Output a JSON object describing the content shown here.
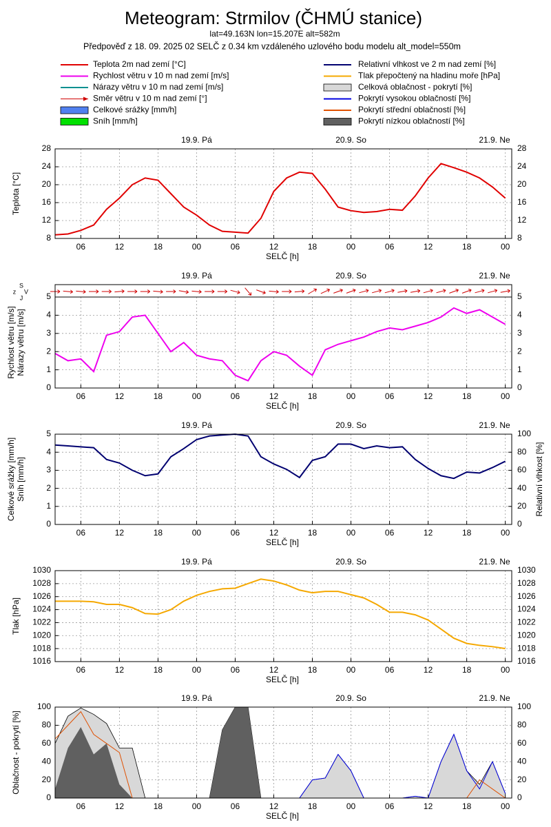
{
  "header": {
    "title": "Meteogram: Strmilov (ČHMÚ stanice)",
    "location": "lat=49.163N lon=15.207E alt=582m",
    "forecast": "Předpověď z 18. 09. 2025 02 SELČ z 0.34 km vzdáleného uzlového bodu modelu alt_model=550m"
  },
  "legend": [
    {
      "name": "Teplota 2m nad zemí [°C]",
      "color": "#e00000",
      "symbol": "line"
    },
    {
      "name": "Rychlost větru v 10 m nad zemí [m/s]",
      "color": "#ee00ee",
      "symbol": "line"
    },
    {
      "name": "Nárazy větru v 10 m nad zemí [m/s]",
      "color": "#009090",
      "symbol": "line"
    },
    {
      "name": "Směr větru v 10 m nad zemí [°]",
      "color": "#d00000",
      "symbol": "arrow"
    },
    {
      "name": "Celkové srážky [mm/h]",
      "color": "#5080f0",
      "symbol": "box"
    },
    {
      "name": "Sníh [mm/h]",
      "color": "#00e000",
      "symbol": "box"
    },
    {
      "name": "Relativní vlhkost ve 2 m nad zemí [%]",
      "color": "#000070",
      "symbol": "line"
    },
    {
      "name": "Tlak přepočtený na hladinu moře [hPa]",
      "color": "#f5a800",
      "symbol": "line"
    },
    {
      "name": "Celková oblačnost - pokrytí [%]",
      "color": "#d8d8d8",
      "symbol": "box"
    },
    {
      "name": "Pokrytí vysokou oblačností [%]",
      "color": "#0000e0",
      "symbol": "line"
    },
    {
      "name": "Pokrytí střední oblačností [%]",
      "color": "#e05000",
      "symbol": "line"
    },
    {
      "name": "Pokrytí nízkou oblačností [%]",
      "color": "#606060",
      "symbol": "box"
    }
  ],
  "chart_data": [
    {
      "type": "line",
      "xlabel": "SELČ [h]",
      "ylabel": [
        "Teplota [°C]"
      ],
      "xlim": [
        2,
        73
      ],
      "xticks": [
        {
          "value": 6,
          "label": "06"
        },
        {
          "value": 12,
          "label": "12"
        },
        {
          "value": 18,
          "label": "18"
        },
        {
          "value": 24,
          "label": "00"
        },
        {
          "value": 30,
          "label": "06"
        },
        {
          "value": 36,
          "label": "12"
        },
        {
          "value": 42,
          "label": "18"
        },
        {
          "value": 48,
          "label": "00"
        },
        {
          "value": 54,
          "label": "06"
        },
        {
          "value": 60,
          "label": "12"
        },
        {
          "value": 66,
          "label": "18"
        },
        {
          "value": 72,
          "label": "00"
        }
      ],
      "days": [
        {
          "value": 24,
          "label": "19.9. Pá"
        },
        {
          "value": 48,
          "label": "20.9. So"
        },
        {
          "value": 72,
          "label": "21.9. Ne"
        }
      ],
      "ylim": [
        8,
        28
      ],
      "yticks": [
        8,
        12,
        16,
        20,
        24,
        28
      ],
      "mirror_y": true,
      "grid": true,
      "x": [
        2,
        4,
        6,
        8,
        10,
        12,
        14,
        16,
        18,
        20,
        22,
        24,
        26,
        28,
        30,
        32,
        34,
        36,
        38,
        40,
        42,
        44,
        46,
        48,
        50,
        52,
        54,
        56,
        58,
        60,
        62,
        64,
        66,
        68,
        70,
        72
      ],
      "series": [
        {
          "color": "#e00000",
          "style": "line",
          "values": [
            8.8,
            9.0,
            9.8,
            11.0,
            14.5,
            17,
            20,
            21.5,
            21.0,
            18.0,
            15.0,
            13.2,
            11.0,
            9.6,
            9.4,
            9.2,
            12.5,
            18.5,
            21.5,
            22.8,
            22.5,
            19.0,
            15.0,
            14.2,
            13.8,
            14.0,
            14.5,
            14.3,
            17.5,
            21.5,
            24.7,
            23.8,
            22.8,
            21.5,
            19.5,
            17.0
          ]
        }
      ]
    },
    {
      "type": "line",
      "xlabel": "SELČ [h]",
      "ylabel": [
        "Rychlost větru [m/s]",
        "Nárazy větru [m/s]"
      ],
      "compass": [
        "S",
        "z",
        "V",
        "J"
      ],
      "xlim": [
        2,
        73
      ],
      "xticks": [
        {
          "value": 6,
          "label": "06"
        },
        {
          "value": 12,
          "label": "12"
        },
        {
          "value": 18,
          "label": "18"
        },
        {
          "value": 24,
          "label": "00"
        },
        {
          "value": 30,
          "label": "06"
        },
        {
          "value": 36,
          "label": "12"
        },
        {
          "value": 42,
          "label": "18"
        },
        {
          "value": 48,
          "label": "00"
        },
        {
          "value": 54,
          "label": "06"
        },
        {
          "value": 60,
          "label": "12"
        },
        {
          "value": 66,
          "label": "18"
        },
        {
          "value": 72,
          "label": "00"
        }
      ],
      "days": [
        {
          "value": 24,
          "label": "19.9. Pá"
        },
        {
          "value": 48,
          "label": "20.9. So"
        },
        {
          "value": 72,
          "label": "21.9. Ne"
        }
      ],
      "ylim": [
        0,
        5
      ],
      "yticks": [
        0,
        1,
        2,
        3,
        4,
        5
      ],
      "mirror_y": true,
      "grid": true,
      "x": [
        2,
        4,
        6,
        8,
        10,
        12,
        14,
        16,
        18,
        20,
        22,
        24,
        26,
        28,
        30,
        32,
        34,
        36,
        38,
        40,
        42,
        44,
        46,
        48,
        50,
        52,
        54,
        56,
        58,
        60,
        62,
        64,
        66,
        68,
        70,
        72
      ],
      "series": [
        {
          "color": "#ee00ee",
          "style": "line",
          "values": [
            1.9,
            1.5,
            1.6,
            0.9,
            2.9,
            3.1,
            3.9,
            4.0,
            3.0,
            2.0,
            2.5,
            1.8,
            1.6,
            1.5,
            0.7,
            0.4,
            1.5,
            2.0,
            1.8,
            1.2,
            0.7,
            2.1,
            2.4,
            2.6,
            2.8,
            3.1,
            3.3,
            3.2,
            3.4,
            3.6,
            3.9,
            4.4,
            4.1,
            4.3,
            3.9,
            3.5
          ]
        },
        {
          "color": "#d00000",
          "style": "arrows",
          "values": [
            270,
            275,
            275,
            270,
            270,
            265,
            270,
            270,
            275,
            270,
            280,
            275,
            270,
            270,
            285,
            320,
            290,
            275,
            270,
            265,
            240,
            245,
            250,
            250,
            255,
            255,
            255,
            260,
            260,
            255,
            255,
            250,
            250,
            255,
            255,
            260
          ]
        }
      ]
    },
    {
      "type": "line",
      "xlabel": "SELČ [h]",
      "ylabel": [
        "Celkové srážky [mm/h]",
        "Sníh [mm/h]"
      ],
      "y2label": "Relativní vlhkost [%]",
      "xlim": [
        2,
        73
      ],
      "xticks": [
        {
          "value": 6,
          "label": "06"
        },
        {
          "value": 12,
          "label": "12"
        },
        {
          "value": 18,
          "label": "18"
        },
        {
          "value": 24,
          "label": "00"
        },
        {
          "value": 30,
          "label": "06"
        },
        {
          "value": 36,
          "label": "12"
        },
        {
          "value": 42,
          "label": "18"
        },
        {
          "value": 48,
          "label": "00"
        },
        {
          "value": 54,
          "label": "06"
        },
        {
          "value": 60,
          "label": "12"
        },
        {
          "value": 66,
          "label": "18"
        },
        {
          "value": 72,
          "label": "00"
        }
      ],
      "days": [
        {
          "value": 24,
          "label": "19.9. Pá"
        },
        {
          "value": 48,
          "label": "20.9. So"
        },
        {
          "value": 72,
          "label": "21.9. Ne"
        }
      ],
      "ylim": [
        0,
        5
      ],
      "yticks": [
        0,
        1,
        2,
        3,
        4,
        5
      ],
      "y2lim": [
        0,
        100
      ],
      "y2ticks": [
        0,
        20,
        40,
        60,
        80,
        100
      ],
      "grid": true,
      "x": [
        2,
        4,
        6,
        8,
        10,
        12,
        14,
        16,
        18,
        20,
        22,
        24,
        26,
        28,
        30,
        32,
        34,
        36,
        38,
        40,
        42,
        44,
        46,
        48,
        50,
        52,
        54,
        56,
        58,
        60,
        62,
        64,
        66,
        68,
        70,
        72
      ],
      "series": [
        {
          "color": "#000070",
          "style": "line",
          "axis": "y2",
          "values": [
            88,
            87,
            86,
            85,
            72,
            68,
            60,
            54,
            56,
            75,
            84,
            94,
            98,
            99,
            100,
            98,
            75,
            67,
            61,
            52,
            71,
            75,
            89,
            89,
            84,
            87,
            85,
            86,
            72,
            62,
            54,
            51,
            58,
            57,
            63,
            70
          ]
        }
      ]
    },
    {
      "type": "line",
      "xlabel": "SELČ [h]",
      "ylabel": [
        "Tlak [hPa]"
      ],
      "xlim": [
        2,
        73
      ],
      "xticks": [
        {
          "value": 6,
          "label": "06"
        },
        {
          "value": 12,
          "label": "12"
        },
        {
          "value": 18,
          "label": "18"
        },
        {
          "value": 24,
          "label": "00"
        },
        {
          "value": 30,
          "label": "06"
        },
        {
          "value": 36,
          "label": "12"
        },
        {
          "value": 42,
          "label": "18"
        },
        {
          "value": 48,
          "label": "00"
        },
        {
          "value": 54,
          "label": "06"
        },
        {
          "value": 60,
          "label": "12"
        },
        {
          "value": 66,
          "label": "18"
        },
        {
          "value": 72,
          "label": "00"
        }
      ],
      "days": [
        {
          "value": 24,
          "label": "19.9. Pá"
        },
        {
          "value": 48,
          "label": "20.9. So"
        },
        {
          "value": 72,
          "label": "21.9. Ne"
        }
      ],
      "ylim": [
        1016,
        1030
      ],
      "yticks": [
        1016,
        1018,
        1020,
        1022,
        1024,
        1026,
        1028,
        1030
      ],
      "mirror_y": true,
      "grid": true,
      "x": [
        2,
        4,
        6,
        8,
        10,
        12,
        14,
        16,
        18,
        20,
        22,
        24,
        26,
        28,
        30,
        32,
        34,
        36,
        38,
        40,
        42,
        44,
        46,
        48,
        50,
        52,
        54,
        56,
        58,
        60,
        62,
        64,
        66,
        68,
        70,
        72
      ],
      "series": [
        {
          "color": "#f5a800",
          "style": "line",
          "values": [
            1025.3,
            1025.3,
            1025.3,
            1025.2,
            1024.8,
            1024.8,
            1024.3,
            1023.4,
            1023.3,
            1024.0,
            1025.3,
            1026.2,
            1026.8,
            1027.2,
            1027.3,
            1028.0,
            1028.7,
            1028.4,
            1027.8,
            1027.0,
            1026.6,
            1026.8,
            1026.8,
            1026.3,
            1025.8,
            1024.8,
            1023.6,
            1023.6,
            1023.2,
            1022.4,
            1021.0,
            1019.6,
            1018.8,
            1018.5,
            1018.3,
            1018.0
          ]
        }
      ]
    },
    {
      "type": "area",
      "xlabel": "SELČ [h]",
      "ylabel": [
        "Oblačnost - pokrytí [%]"
      ],
      "xlim": [
        2,
        73
      ],
      "xticks": [
        {
          "value": 6,
          "label": "06"
        },
        {
          "value": 12,
          "label": "12"
        },
        {
          "value": 18,
          "label": "18"
        },
        {
          "value": 24,
          "label": "00"
        },
        {
          "value": 30,
          "label": "06"
        },
        {
          "value": 36,
          "label": "12"
        },
        {
          "value": 42,
          "label": "18"
        },
        {
          "value": 48,
          "label": "00"
        },
        {
          "value": 54,
          "label": "06"
        },
        {
          "value": 60,
          "label": "12"
        },
        {
          "value": 66,
          "label": "18"
        },
        {
          "value": 72,
          "label": "00"
        }
      ],
      "days": [
        {
          "value": 24,
          "label": "19.9. Pá"
        },
        {
          "value": 48,
          "label": "20.9. So"
        },
        {
          "value": 72,
          "label": "21.9. Ne"
        }
      ],
      "ylim": [
        0,
        100
      ],
      "yticks": [
        0,
        20,
        40,
        60,
        80,
        100
      ],
      "mirror_y": true,
      "grid": true,
      "x": [
        2,
        4,
        6,
        8,
        10,
        12,
        14,
        16,
        18,
        20,
        22,
        24,
        26,
        28,
        30,
        32,
        34,
        36,
        38,
        40,
        42,
        44,
        46,
        48,
        50,
        52,
        54,
        56,
        58,
        60,
        62,
        64,
        66,
        68,
        70,
        72
      ],
      "series": [
        {
          "color": "#d8d8d8",
          "style": "area",
          "values": [
            60,
            90,
            99,
            92,
            82,
            55,
            55,
            0,
            0,
            0,
            0,
            0,
            0,
            75,
            100,
            100,
            0,
            0,
            0,
            0,
            20,
            22,
            48,
            30,
            0,
            0,
            0,
            0,
            2,
            0,
            40,
            70,
            30,
            15,
            40,
            5
          ]
        },
        {
          "color": "#606060",
          "style": "area",
          "values": [
            10,
            55,
            78,
            48,
            60,
            15,
            0,
            0,
            0,
            0,
            0,
            0,
            0,
            75,
            100,
            100,
            0,
            0,
            0,
            0,
            0,
            0,
            0,
            0,
            0,
            0,
            0,
            0,
            0,
            0,
            0,
            0,
            0,
            0,
            0,
            0
          ]
        },
        {
          "color": "#0000e0",
          "style": "line",
          "values": [
            0,
            0,
            0,
            0,
            0,
            0,
            0,
            0,
            0,
            0,
            0,
            0,
            0,
            0,
            0,
            0,
            0,
            0,
            0,
            0,
            20,
            22,
            48,
            30,
            0,
            0,
            0,
            0,
            2,
            0,
            40,
            70,
            30,
            10,
            40,
            5
          ]
        },
        {
          "color": "#e05000",
          "style": "line",
          "values": [
            65,
            80,
            95,
            70,
            60,
            50,
            0,
            0,
            0,
            0,
            0,
            0,
            0,
            0,
            0,
            0,
            0,
            0,
            0,
            0,
            0,
            0,
            0,
            0,
            0,
            0,
            0,
            0,
            0,
            0,
            0,
            0,
            0,
            20,
            10,
            0
          ]
        }
      ]
    }
  ]
}
